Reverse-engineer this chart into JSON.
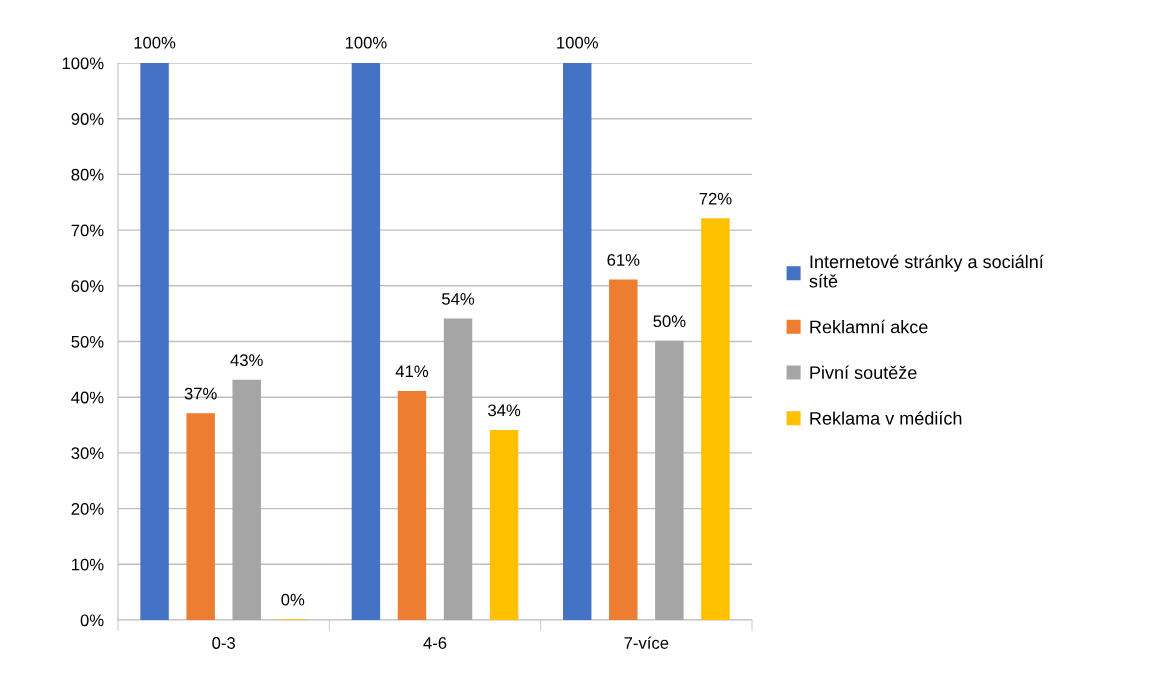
{
  "chart_data": {
    "type": "bar",
    "categories": [
      "0-3",
      "4-6",
      "7-více"
    ],
    "series": [
      {
        "name": "Internetové stránky a sociální\nsítě",
        "color": "#4472c4",
        "values": [
          100,
          100,
          100
        ],
        "value_labels": [
          "100%",
          "100%",
          "100%"
        ]
      },
      {
        "name": "Reklamní akce",
        "color": "#ed7d31",
        "values": [
          37,
          41,
          61
        ],
        "value_labels": [
          "37%",
          "41%",
          "61%"
        ]
      },
      {
        "name": "Pivní soutěže",
        "color": "#a5a5a5",
        "values": [
          43,
          54,
          50
        ],
        "value_labels": [
          "43%",
          "54%",
          "50%"
        ]
      },
      {
        "name": "Reklama v médiích",
        "color": "#ffc000",
        "values": [
          0,
          34,
          72
        ],
        "value_labels": [
          "0%",
          "34%",
          "72%"
        ]
      }
    ],
    "ylim": [
      0,
      100
    ],
    "yticks": [
      {
        "value": 0,
        "label": "0%"
      },
      {
        "value": 10,
        "label": "10%"
      },
      {
        "value": 20,
        "label": "20%"
      },
      {
        "value": 30,
        "label": "30%"
      },
      {
        "value": 40,
        "label": "40%"
      },
      {
        "value": 50,
        "label": "50%"
      },
      {
        "value": 60,
        "label": "60%"
      },
      {
        "value": 70,
        "label": "70%"
      },
      {
        "value": 80,
        "label": "80%"
      },
      {
        "value": 90,
        "label": "90%"
      },
      {
        "value": 100,
        "label": "100%"
      }
    ],
    "grid": "y",
    "legend": "right"
  }
}
